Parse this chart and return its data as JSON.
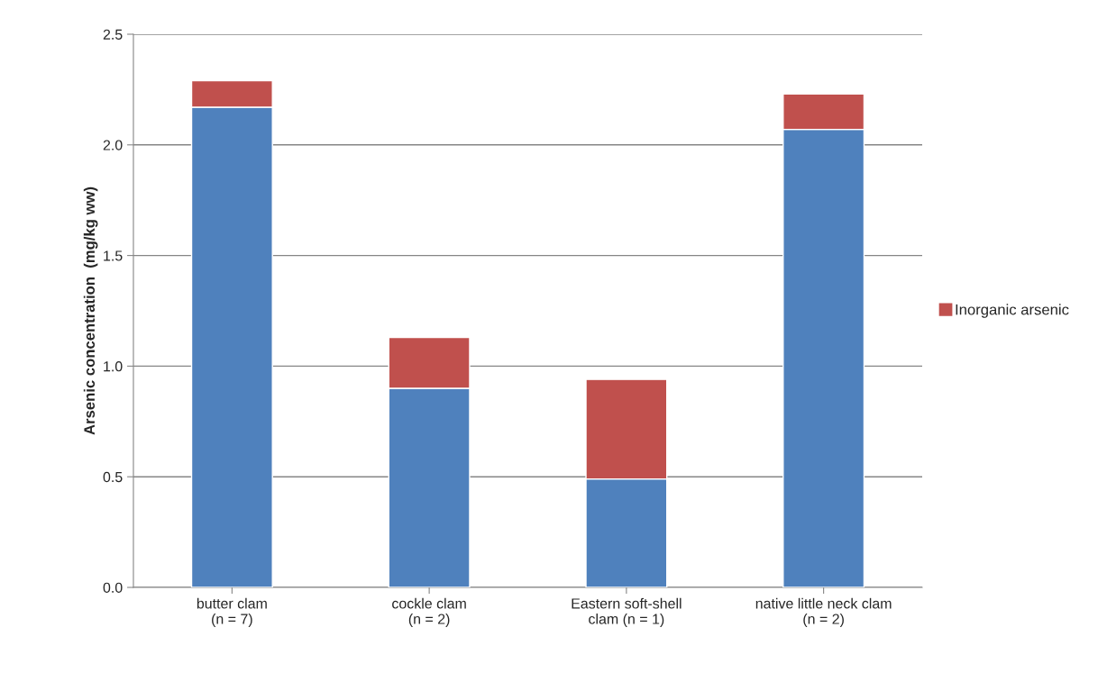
{
  "chart_data": {
    "type": "bar",
    "stacked": true,
    "categories": [
      "butter clam\n(n = 7)",
      "cockle clam\n(n = 2)",
      "Eastern soft-shell\nclam (n = 1)",
      "native little neck clam\n(n = 2)"
    ],
    "ylabel": "Arsenic concentration  (mg/kg ww)",
    "series": [
      {
        "color": "#4f81bd",
        "values": [
          2.17,
          0.9,
          0.49,
          2.07
        ]
      },
      {
        "name": "Inorganic arsenic",
        "color": "#c0504d",
        "values": [
          0.12,
          0.23,
          0.45,
          0.16
        ]
      }
    ],
    "ylim": [
      0,
      2.5
    ],
    "yticks": [
      {
        "value": 0,
        "label": "0.0"
      },
      {
        "value": 0.5,
        "label": "0.5"
      },
      {
        "value": 1,
        "label": "1.0"
      },
      {
        "value": 1.5,
        "label": "1.5"
      },
      {
        "value": 2,
        "label": "2.0"
      },
      {
        "value": 2.5,
        "label": "2.5"
      }
    ],
    "grid": "y",
    "legend": "right"
  }
}
